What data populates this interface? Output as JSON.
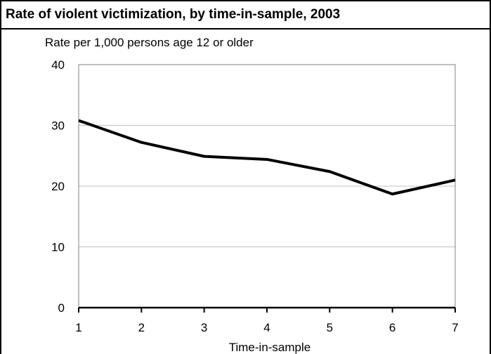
{
  "chart_data": {
    "type": "line",
    "title": "Rate of violent victimization, by time-in-sample, 2003",
    "ylabel": "Rate per 1,000 persons age 12 or older",
    "xlabel": "Time-in-sample",
    "x": [
      1,
      2,
      3,
      4,
      5,
      6,
      7
    ],
    "series": [
      {
        "values": [
          30.8,
          27.2,
          24.9,
          24.4,
          22.4,
          18.7,
          21.0
        ]
      }
    ],
    "ylim": [
      0,
      40
    ],
    "yticks": [
      0,
      10,
      20,
      30,
      40
    ],
    "xticks": [
      "1",
      "2",
      "3",
      "4",
      "5",
      "6",
      "7"
    ],
    "grid": "horizontal",
    "line_color": "#000000",
    "grid_color": "#c0c0c0"
  }
}
